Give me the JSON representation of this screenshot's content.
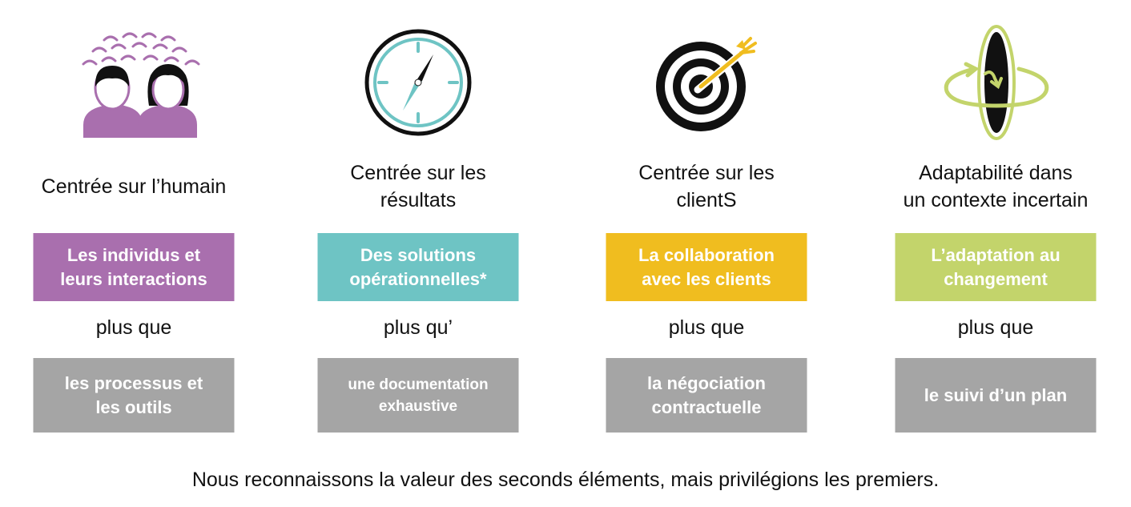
{
  "colors": {
    "purple": "#a96fae",
    "teal": "#6ec4c4",
    "gold": "#f0bd1f",
    "green": "#c3d46b",
    "grey": "#a5a5a5"
  },
  "columns": [
    {
      "icon": "people-icon",
      "heading": [
        "Centrée sur l’humain"
      ],
      "top_box": [
        "Les individus et",
        "leurs interactions"
      ],
      "connector": "plus que",
      "bottom_box": [
        "les processus et",
        "les outils"
      ]
    },
    {
      "icon": "compass-icon",
      "heading": [
        "Centrée sur les",
        "résultats"
      ],
      "top_box": [
        "Des solutions",
        "opérationnelles*"
      ],
      "connector": "plus qu’",
      "bottom_box": [
        "une documentation",
        "exhaustive"
      ]
    },
    {
      "icon": "target-icon",
      "heading": [
        "Centrée sur les",
        "clientS"
      ],
      "top_box": [
        "La collaboration",
        "avec les clients"
      ],
      "connector": "plus que",
      "bottom_box": [
        "la négociation",
        "contractuelle"
      ]
    },
    {
      "icon": "rotating-disc-icon",
      "heading": [
        "Adaptabilité dans",
        "un contexte incertain"
      ],
      "top_box": [
        "L’adaptation au",
        "changement"
      ],
      "connector": "plus que",
      "bottom_box": [
        "le suivi d’un plan"
      ]
    }
  ],
  "footer": "Nous reconnaissons la valeur des seconds éléments, mais privilégions les premiers."
}
